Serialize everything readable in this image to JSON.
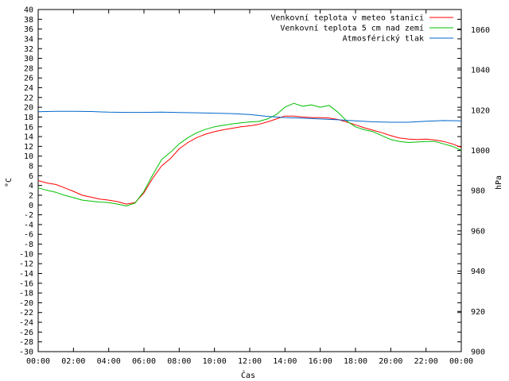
{
  "chart_data": {
    "type": "line",
    "title": "",
    "xlabel": "Čas",
    "ylabel": "°C",
    "y2label": "hPa",
    "x_ticks": [
      "00:00",
      "02:00",
      "04:00",
      "06:00",
      "08:00",
      "10:00",
      "12:00",
      "14:00",
      "16:00",
      "18:00",
      "20:00",
      "22:00",
      "00:00"
    ],
    "x_range_hours": [
      0,
      24
    ],
    "ylim": [
      -30,
      40
    ],
    "y_tick_step": 2,
    "y2lim": [
      900,
      1070
    ],
    "y2_ticks": [
      900,
      920,
      940,
      960,
      980,
      1000,
      1020,
      1040,
      1060
    ],
    "grid": false,
    "legend_position": "top-right",
    "series": [
      {
        "name": "Venkovní teplota v meteo stanici",
        "color": "#ff0000",
        "axis": "left",
        "x_hours": [
          0,
          0.5,
          1,
          1.5,
          2,
          2.5,
          3,
          3.5,
          4,
          4.5,
          5,
          5.5,
          6,
          6.5,
          7,
          7.5,
          8,
          8.5,
          9,
          9.5,
          10,
          10.5,
          11,
          11.5,
          12,
          12.5,
          13,
          13.5,
          14,
          14.5,
          15,
          15.5,
          16,
          16.5,
          17,
          17.5,
          18,
          18.5,
          19,
          19.5,
          20,
          20.5,
          21,
          21.5,
          22,
          22.5,
          23,
          23.5,
          24
        ],
        "values": [
          5,
          4.5,
          4.2,
          3.5,
          2.8,
          2.0,
          1.6,
          1.2,
          1.0,
          0.7,
          0.2,
          0.5,
          2.5,
          5.5,
          8.0,
          9.5,
          11.5,
          12.8,
          13.8,
          14.5,
          15.0,
          15.4,
          15.7,
          16.0,
          16.2,
          16.5,
          17.0,
          17.6,
          18.2,
          18.2,
          18.0,
          17.9,
          17.9,
          17.8,
          17.5,
          17.0,
          16.4,
          15.8,
          15.3,
          14.8,
          14.2,
          13.7,
          13.5,
          13.4,
          13.5,
          13.3,
          13.0,
          12.5,
          11.8
        ]
      },
      {
        "name": "Venkovní teplota 5 cm nad zemí",
        "color": "#00c000",
        "axis": "left",
        "x_hours": [
          0,
          0.5,
          1,
          1.5,
          2,
          2.5,
          3,
          3.5,
          4,
          4.5,
          5,
          5.5,
          6,
          6.5,
          7,
          7.5,
          8,
          8.5,
          9,
          9.5,
          10,
          10.5,
          11,
          11.5,
          12,
          12.5,
          13,
          13.5,
          14,
          14.5,
          15,
          15.5,
          16,
          16.5,
          17,
          17.5,
          18,
          18.5,
          19,
          19.5,
          20,
          20.5,
          21,
          21.5,
          22,
          22.5,
          23,
          23.5,
          24
        ],
        "values": [
          3.5,
          3.0,
          2.6,
          2.0,
          1.5,
          1.0,
          0.8,
          0.6,
          0.5,
          0.2,
          -0.2,
          0.4,
          2.8,
          6.2,
          9.3,
          10.8,
          12.5,
          13.8,
          14.8,
          15.5,
          16.0,
          16.3,
          16.6,
          16.8,
          17.0,
          17.1,
          17.6,
          18.5,
          20.0,
          20.8,
          20.2,
          20.5,
          20.0,
          20.4,
          19.0,
          17.2,
          16.0,
          15.4,
          15.0,
          14.2,
          13.4,
          13.0,
          12.8,
          12.9,
          13.0,
          13.0,
          12.5,
          12.0,
          11.2
        ]
      },
      {
        "name": "Atmosférický tlak",
        "color": "#0066cc",
        "axis": "right",
        "x_hours": [
          0,
          1,
          2,
          3,
          4,
          5,
          6,
          7,
          8,
          9,
          10,
          11,
          12,
          13,
          14,
          15,
          16,
          17,
          18,
          19,
          20,
          21,
          22,
          23,
          24
        ],
        "values": [
          1019.2,
          1019.4,
          1019.4,
          1019.3,
          1019.0,
          1018.9,
          1018.9,
          1019.0,
          1018.8,
          1018.7,
          1018.5,
          1018.3,
          1017.8,
          1016.9,
          1016.3,
          1016.0,
          1015.6,
          1015.2,
          1014.7,
          1014.2,
          1014.0,
          1014.0,
          1014.5,
          1014.8,
          1014.7
        ]
      }
    ]
  }
}
